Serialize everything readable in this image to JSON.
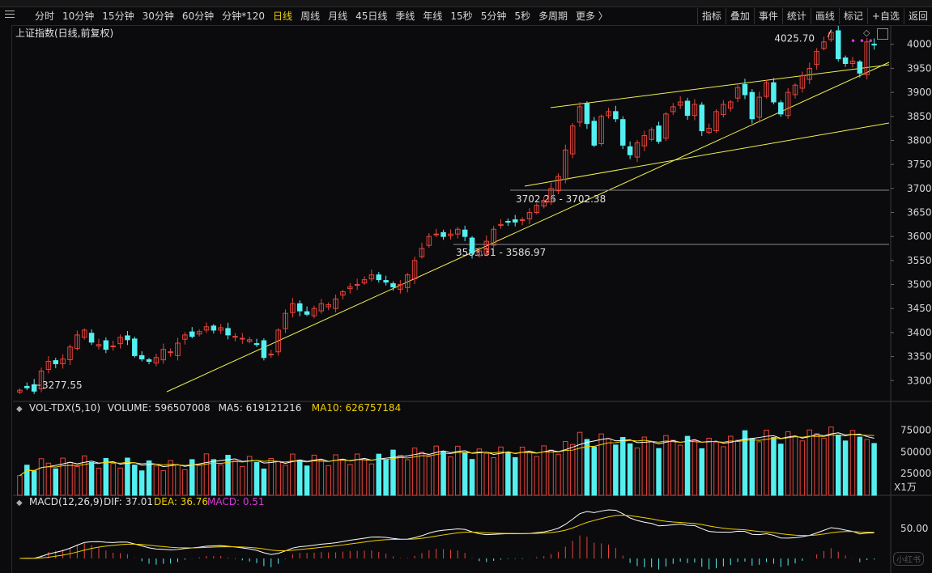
{
  "toolbar": {
    "periods": [
      "分时",
      "10分钟",
      "15分钟",
      "30分钟",
      "60分钟",
      "分钟*120",
      "日线",
      "周线",
      "月线",
      "45日线",
      "季线",
      "年线",
      "15秒",
      "5分钟",
      "5秒",
      "多周期",
      "更多 〉"
    ],
    "active_period": "日线",
    "right_buttons": [
      "指标",
      "叠加",
      "事件",
      "统计",
      "画线",
      "标记",
      "+自选",
      "返回"
    ]
  },
  "price_panel": {
    "title": "上证指数(日线,前复权)",
    "y_ticks": [
      3300,
      3350,
      3400,
      3450,
      3500,
      3550,
      3600,
      3650,
      3700,
      3750,
      3800,
      3850,
      3900,
      3950,
      4000
    ],
    "annotations": {
      "high": "4025.70",
      "low": "3277.55",
      "range1": "3702.26 - 3702.38",
      "range2": "3583.31 - 3586.97"
    }
  },
  "volume_panel": {
    "label": "VOL-TDX(5,10)",
    "volume_label": "VOLUME:",
    "volume_value": "596507008",
    "ma5_label": "MA5:",
    "ma5_value": "619121216",
    "ma10_label": "MA10:",
    "ma10_value": "626757184",
    "y_ticks": [
      "75000",
      "50000",
      "25000"
    ],
    "unit": "X1万"
  },
  "macd_panel": {
    "label": "MACD(12,26,9)",
    "dif_label": "DIF:",
    "dif_value": "37.01",
    "dea_label": "DEA:",
    "dea_value": "36.76",
    "macd_label": "MACD:",
    "macd_value": "0.51",
    "y_ticks": [
      "50.00"
    ]
  },
  "colors": {
    "up": "#e8443a",
    "down": "#54f0f0",
    "ma5": "#ffffff",
    "ma10": "#f0d000",
    "trendline": "#f0f050",
    "macd_label": "#d63ad6",
    "dea_label": "#f0d000"
  },
  "chart_data": {
    "type": "candlestick",
    "title": "上证指数(日线,前复权)",
    "ylim": [
      3260,
      4040
    ],
    "closes": [
      3280,
      3285,
      3278,
      3320,
      3340,
      3335,
      3345,
      3370,
      3395,
      3405,
      3380,
      3375,
      3365,
      3372,
      3390,
      3385,
      3352,
      3345,
      3340,
      3348,
      3365,
      3360,
      3378,
      3395,
      3392,
      3402,
      3412,
      3405,
      3410,
      3395,
      3392,
      3388,
      3385,
      3375,
      3348,
      3355,
      3405,
      3440,
      3460,
      3445,
      3438,
      3450,
      3460,
      3458,
      3470,
      3485,
      3495,
      3500,
      3510,
      3520,
      3510,
      3505,
      3495,
      3500,
      3520,
      3550,
      3575,
      3600,
      3605,
      3600,
      3605,
      3615,
      3600,
      3565,
      3570,
      3590,
      3615,
      3625,
      3630,
      3630,
      3635,
      3650,
      3665,
      3675,
      3700,
      3725,
      3780,
      3830,
      3870,
      3835,
      3790,
      3850,
      3860,
      3845,
      3790,
      3770,
      3795,
      3810,
      3822,
      3798,
      3855,
      3870,
      3880,
      3852,
      3875,
      3820,
      3825,
      3860,
      3875,
      3880,
      3910,
      3895,
      3845,
      3890,
      3920,
      3880,
      3855,
      3900,
      3915,
      3935,
      3950,
      3985,
      4005,
      4025,
      3970,
      3960,
      3965,
      3940,
      4005,
      4000
    ],
    "volume_unit": "万",
    "volume_ma5": 61912.1216,
    "volume_ma10": 62675.7184,
    "volume_last": 59650.7008,
    "macd": {
      "dif": 37.01,
      "dea": 36.76,
      "macd": 0.51
    }
  }
}
